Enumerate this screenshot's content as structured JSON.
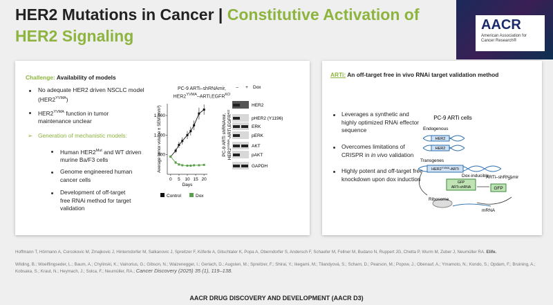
{
  "header": {
    "title_black": "HER2 Mutations in Cancer |",
    "title_green": "Constitutive Activation of HER2 Signaling"
  },
  "logo": {
    "name": "AACR",
    "subtitle": "American Association for Cancer Research®"
  },
  "left_panel": {
    "challenge_label": "Challenge:",
    "challenge_text": "Availability of models",
    "bullet_1": [
      "No adequate HER2 driven NSCLC model (HER2",
      "YVMA",
      ")"
    ],
    "bullet_2": [
      "HER2",
      "YVMA",
      " function in tumor maintenance unclear"
    ],
    "heading_2": "Generation of mechanistic models:",
    "sub_bullet_1": [
      "Human HER2",
      "Mut",
      " and WT driven murine Ba/F3 cells"
    ],
    "sub_bullet_2": "Genome engineered human cancer cells",
    "sub_bullet_3": "Development of off-target free RNAi method for target validation",
    "chart": {
      "type": "line",
      "title": [
        "PC-9 ARTi–shRNAmir,",
        "HER2",
        "YVMA",
        "–ARTi,EGFR",
        "KO"
      ],
      "y_label": "Average tumor volume ± SEM (mm³)",
      "x_label": "Days",
      "x": [
        0,
        3,
        5,
        7,
        10,
        12,
        14,
        17,
        20
      ],
      "series": [
        {
          "name": "Control",
          "color": "#111111",
          "values": [
            450,
            600,
            750,
            850,
            1000,
            1100,
            1250,
            1550,
            1650
          ],
          "errors": [
            30,
            60,
            80,
            90,
            100,
            110,
            120,
            150,
            130
          ]
        },
        {
          "name": "Dox",
          "color": "#5aa04a",
          "values": [
            450,
            300,
            250,
            230,
            220,
            220,
            230,
            230,
            240
          ],
          "errors": [
            30,
            40,
            30,
            20,
            20,
            20,
            20,
            20,
            20
          ]
        }
      ],
      "xlim": [
        -2,
        22
      ],
      "ylim": [
        0,
        1800
      ],
      "xticks": [
        0,
        5,
        10,
        15,
        20
      ],
      "yticks": [
        500,
        {
          "value": 1000,
          "label": "1,000"
        },
        {
          "value": 1500,
          "label": "1,500"
        }
      ]
    },
    "blot": {
      "label": [
        "PC-9 ARTi shRNAmir,",
        "HER2",
        "YVMA",
        "-ARTi,EGFR",
        "KO"
      ],
      "columns": [
        "–",
        "+"
      ],
      "condition": "Dox",
      "rows": [
        "HER2",
        "pHER2 (Y1196)",
        "ERK",
        "pERK",
        "AKT",
        "pAKT",
        "GAPDH"
      ]
    }
  },
  "right_panel": {
    "heading_label": "ARTi:",
    "heading_text": "An off-target free in vivo RNAi target validation method",
    "bullet_1": "Leverages a synthetic and highly optimized RNAi effector sequence",
    "bullet_2": [
      "Overcomes limitations of CRISPR in ",
      "in vivo",
      " validation"
    ],
    "bullet_3": "Highly potent and off-target free knockdown upon dox induction",
    "diagram": {
      "title": "PC-9 ARTi cells",
      "endogenous": "Endogenous",
      "gene": "HER2",
      "transgenes": "Transgenes",
      "transgene": [
        "HER2",
        "YVMA",
        "-ARTi"
      ],
      "inducible": "Dox-inducible",
      "cassette": [
        "GFP",
        "ARTi-shRNA"
      ],
      "shrna": "ARTi–shRNAmir",
      "gfp": "GFP",
      "ribosome": "Ribosome",
      "mrna": "mRNA"
    }
  },
  "references": {
    "ref_1": "Hoffmann T, Hörmann A, Corcokovic M, Zmajkovic J, Hinterndorfer M, Salkanovic J, Spreitzer F, Köferle A, Gitschtaler K, Popa A, Oberndorfer S, Andersch F, Schaefer M, Fellner M, Budano N, Ruppert JG, Chetta P, Wurm M, Zuber J, Neumüller RA.",
    "ref_1_journal": "Elife.",
    "ref_2": "Wilding, B.; Woelflingseder, L.; Baum, A.; Chylinski, K.; Vainorius, G.; Gibson, N.; Waizenegger, I.; Gerlach, D.; Augsten, M.; Spreitzer, F.; Shirai, Y.; Ikegami, M.; Tilandyová, S.; Scharn, D.; Pearson, M.; Popow, J.; Obenauf, A.; Ymamoto, N.; Kondo, S.; Opdam, F.; Bruining, A.; Kobsaka, S.; Kraut, N.; Heymach, J.; Solca, F.; Neumüller, RA.;",
    "ref_2_journal": "Cancer Discovery (2025) 35 (1), 119–138."
  },
  "footer": {
    "text": "AACR DRUG DISCOVERY AND DEVELOPMENT (AACR D3)"
  }
}
